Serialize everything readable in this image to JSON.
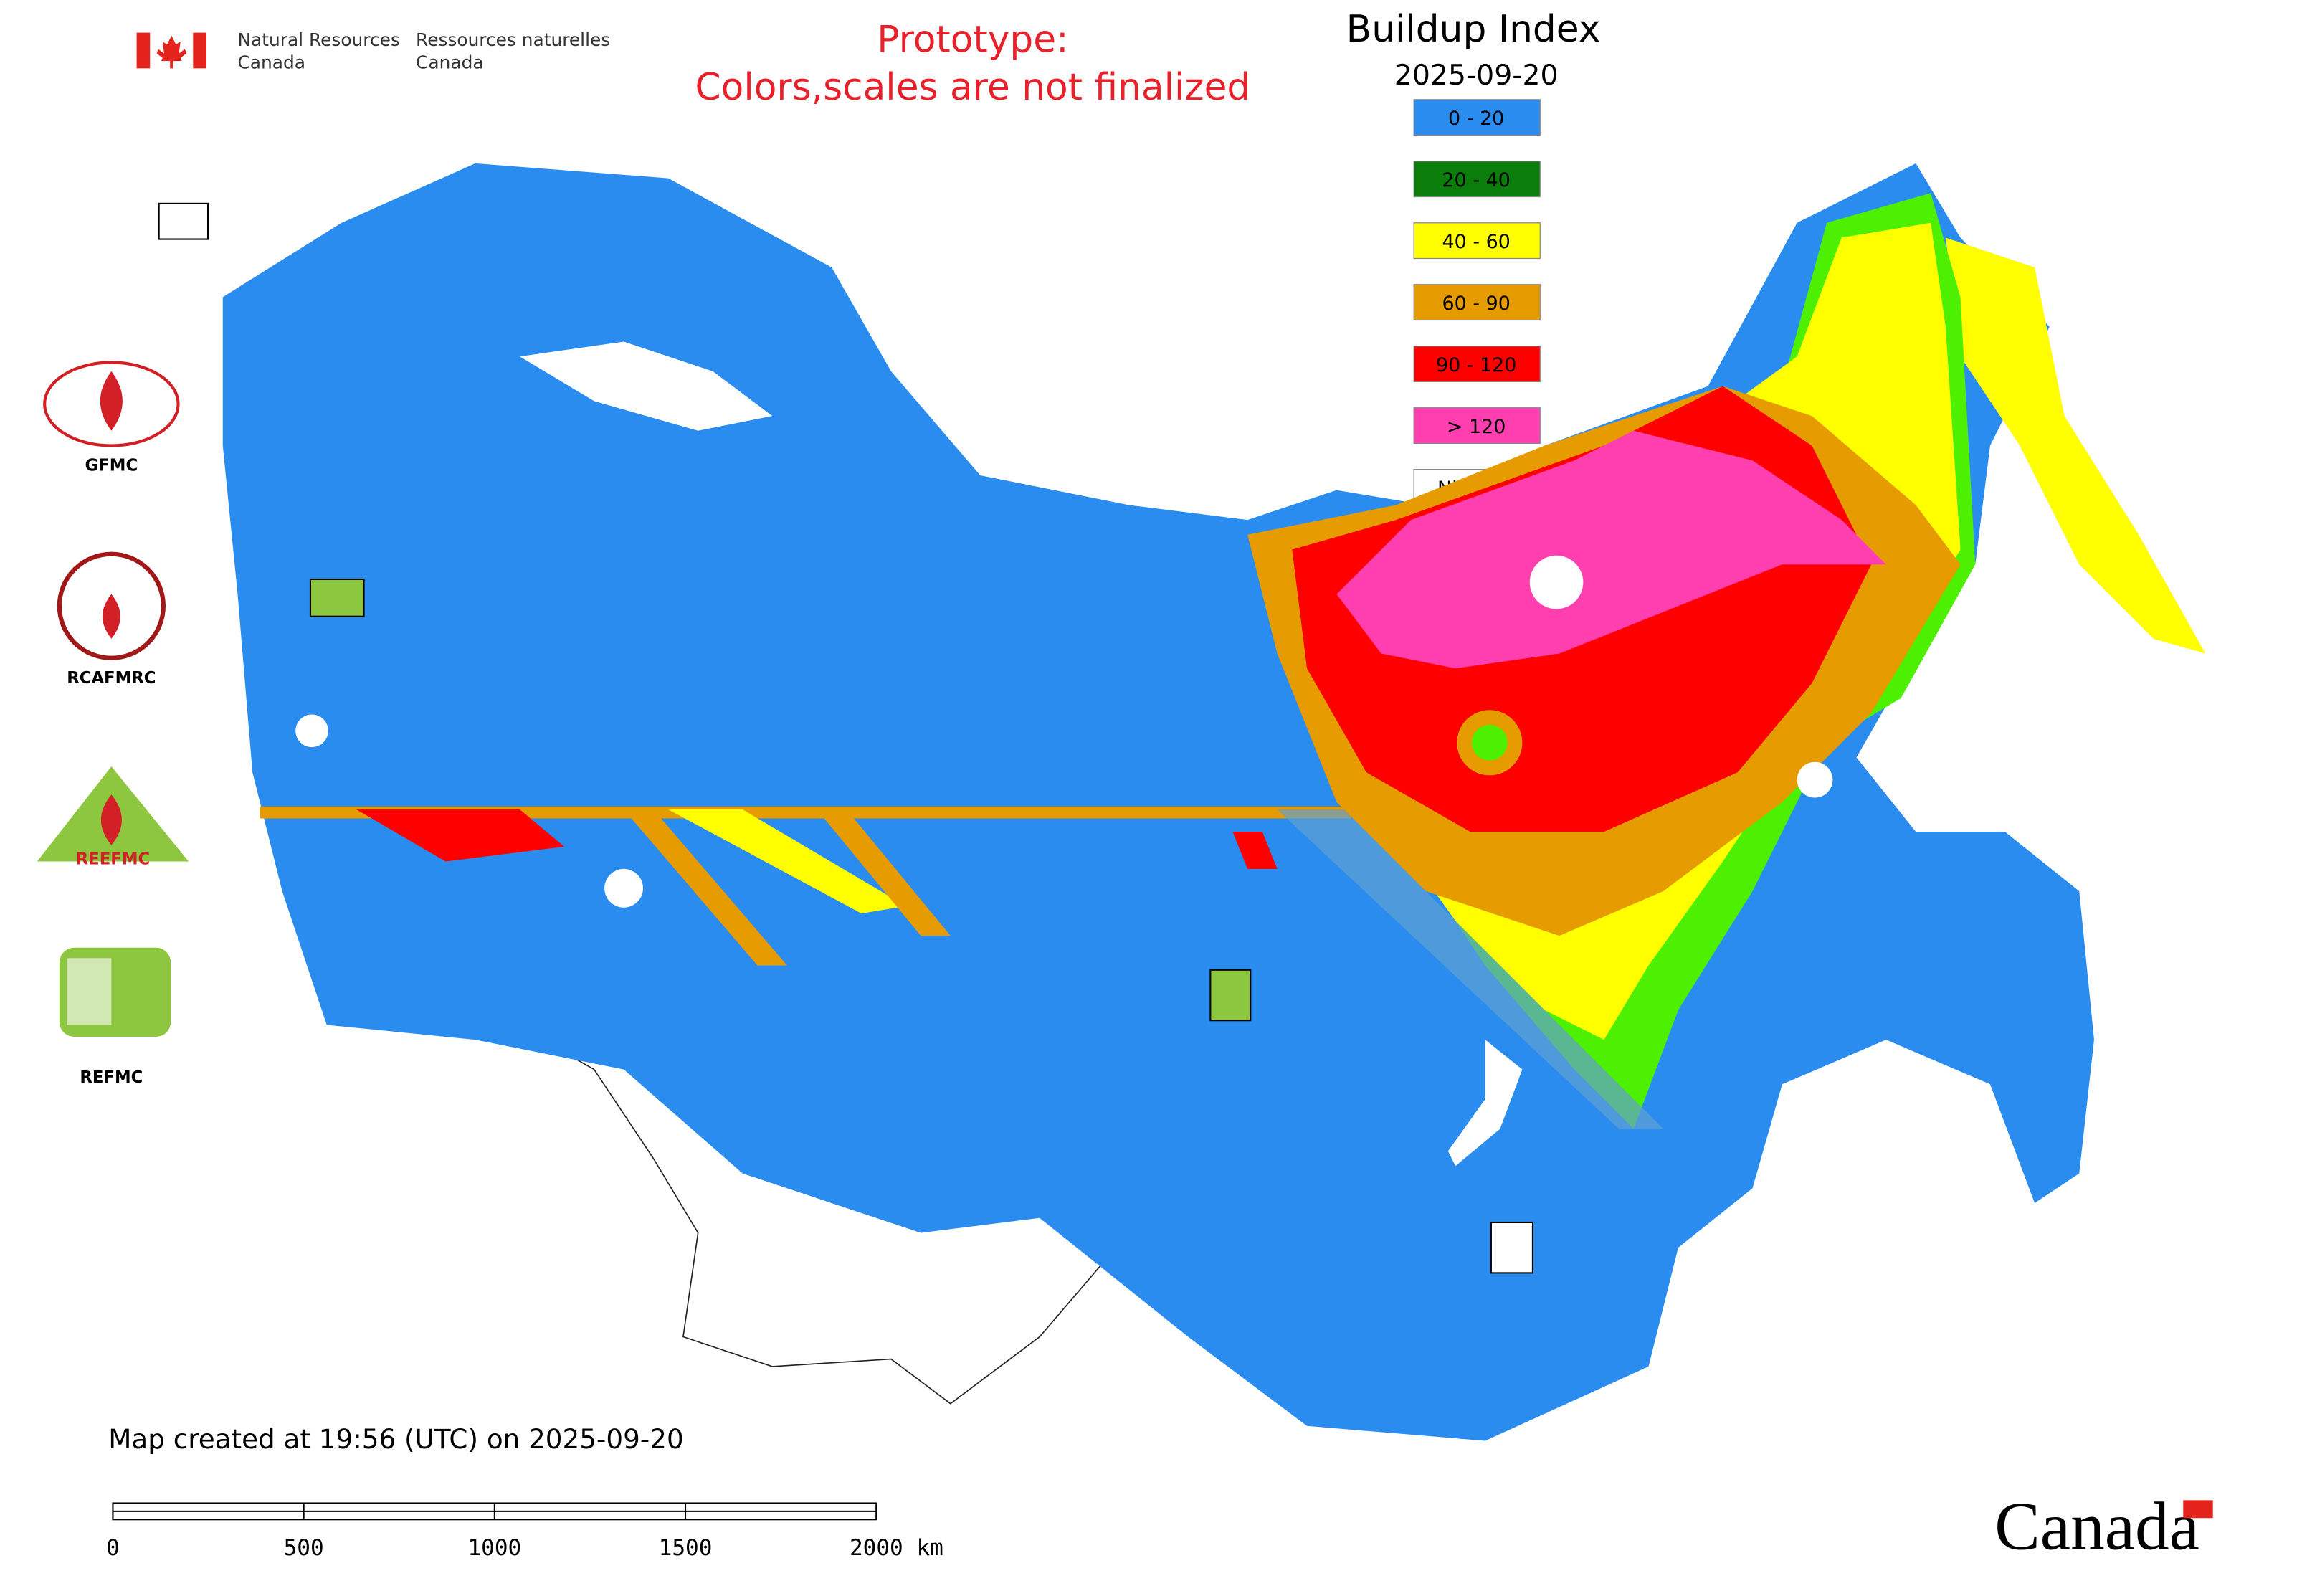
{
  "header": {
    "agency_en": [
      "Natural Resources",
      "Canada"
    ],
    "agency_fr": [
      "Ressources naturelles",
      "Canada"
    ]
  },
  "notice": [
    "Prototype:",
    "Colors,scales are not finalized"
  ],
  "title": "Buildup Index",
  "date": "2025-09-20",
  "legend": [
    {
      "label": "0 - 20",
      "color": "#2b8cf0"
    },
    {
      "label": "20 - 40",
      "color": "#0a7d0a"
    },
    {
      "label": "40 - 60",
      "color": "#ffff00"
    },
    {
      "label": "60 - 90",
      "color": "#e69b00"
    },
    {
      "label": "90 - 120",
      "color": "#ff0000"
    },
    {
      "label": "> 120",
      "color": "#ff3fb0"
    },
    {
      "label": "Nil / s.o.",
      "color": "#ffffff"
    }
  ],
  "logos": [
    "GFMC",
    "RCAFMRC",
    "REEFMC",
    "REFMC"
  ],
  "footer": "Map created at 19:56 (UTC) on 2025-09-20",
  "scale_bar": [
    "0",
    "500",
    "1000",
    "1500",
    "2000 km"
  ],
  "wordmark": "Canada"
}
